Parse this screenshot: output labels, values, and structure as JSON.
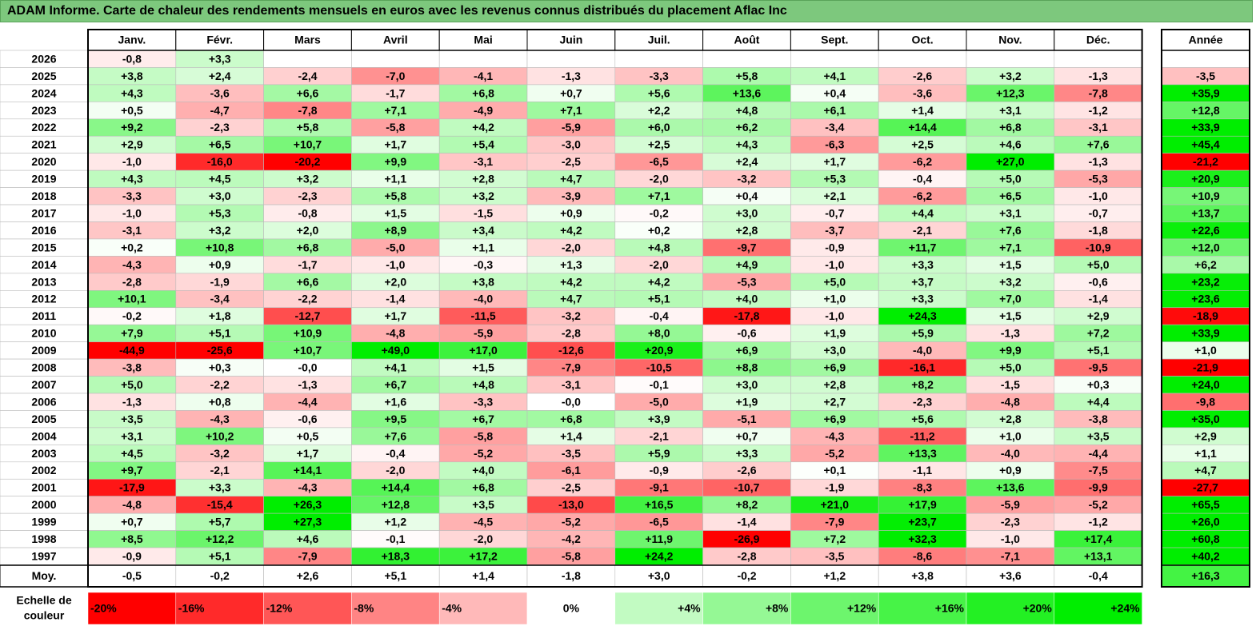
{
  "title": "ADAM Informe. Carte de chaleur des rendements mensuels en euros avec les revenus connus distribués du placement Aflac Inc",
  "chart_data": {
    "type": "heatmap",
    "title": "ADAM Informe. Carte de chaleur des rendements mensuels en euros avec les revenus connus distribués du placement Aflac Inc",
    "months": [
      "Janv.",
      "Févr.",
      "Mars",
      "Avril",
      "Mai",
      "Juin",
      "Juil.",
      "Août",
      "Sept.",
      "Oct.",
      "Nov.",
      "Déc."
    ],
    "year_header": "Année",
    "avg_label": "Moy.",
    "rows": [
      {
        "year": "2026",
        "values": [
          "-0,8",
          "+3,3",
          "",
          "",
          "",
          "",
          "",
          "",
          "",
          "",
          "",
          ""
        ],
        "annual": ""
      },
      {
        "year": "2025",
        "values": [
          "+3,8",
          "+2,4",
          "-2,4",
          "-7,0",
          "-4,1",
          "-1,3",
          "-3,3",
          "+5,8",
          "+4,1",
          "-2,6",
          "+3,2",
          "-1,3"
        ],
        "annual": "-3,5"
      },
      {
        "year": "2024",
        "values": [
          "+4,3",
          "-3,6",
          "+6,6",
          "-1,7",
          "+6,8",
          "+0,7",
          "+5,6",
          "+13,6",
          "+0,4",
          "-3,6",
          "+12,3",
          "-7,8"
        ],
        "annual": "+35,9"
      },
      {
        "year": "2023",
        "values": [
          "+0,5",
          "-4,7",
          "-7,8",
          "+7,1",
          "-4,9",
          "+7,1",
          "+2,2",
          "+4,8",
          "+6,1",
          "+1,4",
          "+3,1",
          "-1,2"
        ],
        "annual": "+12,8"
      },
      {
        "year": "2022",
        "values": [
          "+9,2",
          "-2,3",
          "+5,8",
          "-5,8",
          "+4,2",
          "-5,9",
          "+6,0",
          "+6,2",
          "-3,4",
          "+14,4",
          "+6,8",
          "-3,1"
        ],
        "annual": "+33,9"
      },
      {
        "year": "2021",
        "values": [
          "+2,9",
          "+6,5",
          "+10,7",
          "+1,7",
          "+5,4",
          "-3,0",
          "+2,5",
          "+4,3",
          "-6,3",
          "+2,5",
          "+4,6",
          "+7,6"
        ],
        "annual": "+45,4"
      },
      {
        "year": "2020",
        "values": [
          "-1,0",
          "-16,0",
          "-20,2",
          "+9,9",
          "-3,1",
          "-2,5",
          "-6,5",
          "+2,4",
          "+1,7",
          "-6,2",
          "+27,0",
          "-1,3"
        ],
        "annual": "-21,2"
      },
      {
        "year": "2019",
        "values": [
          "+4,3",
          "+4,5",
          "+3,2",
          "+1,1",
          "+2,8",
          "+4,7",
          "-2,0",
          "-3,2",
          "+5,3",
          "-0,4",
          "+5,0",
          "-5,3"
        ],
        "annual": "+20,9"
      },
      {
        "year": "2018",
        "values": [
          "-3,3",
          "+3,0",
          "-2,3",
          "+5,8",
          "+3,2",
          "-3,9",
          "+7,1",
          "+0,4",
          "+2,1",
          "-6,2",
          "+6,5",
          "-1,0"
        ],
        "annual": "+10,9"
      },
      {
        "year": "2017",
        "values": [
          "-1,0",
          "+5,3",
          "-0,8",
          "+1,5",
          "-1,5",
          "+0,9",
          "-0,2",
          "+3,0",
          "-0,7",
          "+4,4",
          "+3,1",
          "-0,7"
        ],
        "annual": "+13,7"
      },
      {
        "year": "2016",
        "values": [
          "-3,1",
          "+3,2",
          "+2,0",
          "+8,9",
          "+3,4",
          "+4,2",
          "+0,2",
          "+2,8",
          "-3,7",
          "-2,1",
          "+7,6",
          "-1,8"
        ],
        "annual": "+22,6"
      },
      {
        "year": "2015",
        "values": [
          "+0,2",
          "+10,8",
          "+6,8",
          "-5,0",
          "+1,1",
          "-2,0",
          "+4,8",
          "-9,7",
          "-0,9",
          "+11,7",
          "+7,1",
          "-10,9"
        ],
        "annual": "+12,0"
      },
      {
        "year": "2014",
        "values": [
          "-4,3",
          "+0,9",
          "-1,7",
          "-1,0",
          "-0,3",
          "+1,3",
          "-2,0",
          "+4,9",
          "-1,0",
          "+3,3",
          "+1,5",
          "+5,0"
        ],
        "annual": "+6,2"
      },
      {
        "year": "2013",
        "values": [
          "-2,8",
          "-1,9",
          "+6,6",
          "+2,0",
          "+3,8",
          "+4,2",
          "+4,2",
          "-5,3",
          "+5,0",
          "+3,7",
          "+3,2",
          "-0,6"
        ],
        "annual": "+23,2"
      },
      {
        "year": "2012",
        "values": [
          "+10,1",
          "-3,4",
          "-2,2",
          "-1,4",
          "-4,0",
          "+4,7",
          "+5,1",
          "+4,0",
          "+1,0",
          "+3,3",
          "+7,0",
          "-1,4"
        ],
        "annual": "+23,6"
      },
      {
        "year": "2011",
        "values": [
          "-0,2",
          "+1,8",
          "-12,7",
          "+1,7",
          "-11,5",
          "-3,2",
          "-0,4",
          "-17,8",
          "-1,0",
          "+24,3",
          "+1,5",
          "+2,9"
        ],
        "annual": "-18,9"
      },
      {
        "year": "2010",
        "values": [
          "+7,9",
          "+5,1",
          "+10,9",
          "-4,8",
          "-5,9",
          "-2,8",
          "+8,0",
          "-0,6",
          "+1,9",
          "+5,9",
          "-1,3",
          "+7,2"
        ],
        "annual": "+33,9"
      },
      {
        "year": "2009",
        "values": [
          "-44,9",
          "-25,6",
          "+10,7",
          "+49,0",
          "+17,0",
          "-12,6",
          "+20,9",
          "+6,9",
          "+3,0",
          "-4,0",
          "+9,9",
          "+5,1"
        ],
        "annual": "+1,0"
      },
      {
        "year": "2008",
        "values": [
          "-3,8",
          "+0,3",
          "-0,0",
          "+4,1",
          "+1,5",
          "-7,9",
          "-10,5",
          "+8,8",
          "+6,9",
          "-16,1",
          "+5,0",
          "-9,5"
        ],
        "annual": "-21,9"
      },
      {
        "year": "2007",
        "values": [
          "+5,0",
          "-2,2",
          "-1,3",
          "+6,7",
          "+4,8",
          "-3,1",
          "-0,1",
          "+3,0",
          "+2,8",
          "+8,2",
          "-1,5",
          "+0,3"
        ],
        "annual": "+24,0"
      },
      {
        "year": "2006",
        "values": [
          "-1,3",
          "+0,8",
          "-4,4",
          "+1,6",
          "-3,3",
          "-0,0",
          "-5,0",
          "+1,9",
          "+2,7",
          "-2,3",
          "-4,8",
          "+4,4"
        ],
        "annual": "-9,8"
      },
      {
        "year": "2005",
        "values": [
          "+3,5",
          "-4,3",
          "-0,6",
          "+9,5",
          "+6,7",
          "+6,8",
          "+3,9",
          "-5,1",
          "+6,9",
          "+5,6",
          "+2,8",
          "-3,8"
        ],
        "annual": "+35,0"
      },
      {
        "year": "2004",
        "values": [
          "+3,1",
          "+10,2",
          "+0,5",
          "+7,6",
          "-5,8",
          "+1,4",
          "-2,1",
          "+0,7",
          "-4,3",
          "-11,2",
          "+1,0",
          "+3,5"
        ],
        "annual": "+2,9"
      },
      {
        "year": "2003",
        "values": [
          "+4,5",
          "-3,2",
          "+1,7",
          "-0,4",
          "-5,2",
          "-3,5",
          "+5,9",
          "+3,3",
          "-5,2",
          "+13,3",
          "-4,0",
          "-4,4"
        ],
        "annual": "+1,1"
      },
      {
        "year": "2002",
        "values": [
          "+9,7",
          "-2,1",
          "+14,1",
          "-2,0",
          "+4,0",
          "-6,1",
          "-0,9",
          "-2,6",
          "+0,1",
          "-1,1",
          "+0,9",
          "-7,5"
        ],
        "annual": "+4,7"
      },
      {
        "year": "2001",
        "values": [
          "-17,9",
          "+3,3",
          "-4,3",
          "+14,4",
          "+6,8",
          "-2,5",
          "-9,1",
          "-10,7",
          "-1,9",
          "-8,3",
          "+13,6",
          "-9,9"
        ],
        "annual": "-27,7"
      },
      {
        "year": "2000",
        "values": [
          "-4,8",
          "-15,4",
          "+26,3",
          "+12,8",
          "+3,5",
          "-13,0",
          "+16,5",
          "+8,2",
          "+21,0",
          "+17,9",
          "-5,9",
          "-5,2"
        ],
        "annual": "+65,5"
      },
      {
        "year": "1999",
        "values": [
          "+0,7",
          "+5,7",
          "+27,3",
          "+1,2",
          "-4,5",
          "-5,2",
          "-6,5",
          "-1,4",
          "-7,9",
          "+23,7",
          "-2,3",
          "-1,2"
        ],
        "annual": "+26,0"
      },
      {
        "year": "1998",
        "values": [
          "+8,5",
          "+12,2",
          "+4,6",
          "-0,1",
          "-2,0",
          "-4,2",
          "+11,9",
          "-26,9",
          "+7,2",
          "+32,3",
          "-1,0",
          "+17,4"
        ],
        "annual": "+60,8"
      },
      {
        "year": "1997",
        "values": [
          "-0,9",
          "+5,1",
          "-7,9",
          "+18,3",
          "+17,2",
          "-5,8",
          "+24,2",
          "-2,8",
          "-3,5",
          "-8,6",
          "-7,1",
          "+13,1"
        ],
        "annual": "+40,2"
      }
    ],
    "average": {
      "values": [
        "-0,5",
        "-0,2",
        "+2,6",
        "+5,1",
        "+1,4",
        "-1,8",
        "+3,0",
        "-0,2",
        "+1,2",
        "+3,8",
        "+3,6",
        "-0,4"
      ],
      "annual": "+16,3"
    },
    "legend": {
      "label_line1": "Echelle de",
      "label_line2": "couleur",
      "steps": [
        "-20%",
        "-16%",
        "-12%",
        "-8%",
        "-4%",
        "0%",
        "+4%",
        "+8%",
        "+12%",
        "+16%",
        "+20%",
        "+24%"
      ]
    }
  },
  "colors": {
    "title_bg": "#7dc87d",
    "negative_max": "#ff0000",
    "neutral": "#ffffff",
    "positive_max": "#00ee00"
  }
}
